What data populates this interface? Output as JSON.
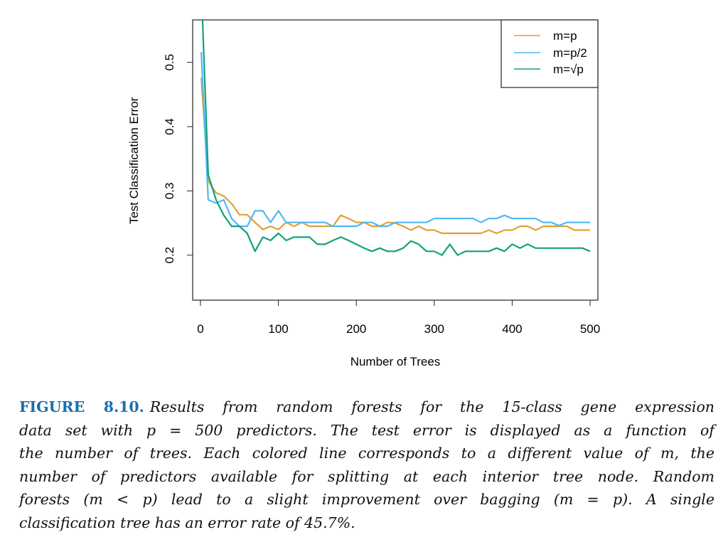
{
  "chart_data": {
    "type": "line",
    "xlabel": "Number of Trees",
    "ylabel": "Test Classification Error",
    "xlim": [
      -10,
      510
    ],
    "ylim": [
      0.13,
      0.566
    ],
    "xticks": [
      0,
      100,
      200,
      300,
      400,
      500
    ],
    "yticks": [
      0.2,
      0.3,
      0.4,
      0.5
    ],
    "grid": false,
    "legend_position": "top-right",
    "x": [
      1,
      10,
      20,
      30,
      40,
      50,
      60,
      70,
      80,
      90,
      100,
      110,
      120,
      130,
      140,
      150,
      160,
      170,
      180,
      190,
      200,
      210,
      220,
      230,
      240,
      250,
      260,
      270,
      280,
      290,
      300,
      310,
      320,
      330,
      340,
      350,
      360,
      370,
      380,
      390,
      400,
      410,
      420,
      430,
      440,
      450,
      460,
      470,
      480,
      490,
      500
    ],
    "series": [
      {
        "name": "m=p",
        "color": "#e0a034",
        "values": [
          0.476,
          0.315,
          0.297,
          0.292,
          0.28,
          0.263,
          0.263,
          0.251,
          0.24,
          0.245,
          0.24,
          0.251,
          0.245,
          0.251,
          0.245,
          0.245,
          0.245,
          0.245,
          0.262,
          0.257,
          0.251,
          0.251,
          0.245,
          0.245,
          0.251,
          0.25,
          0.245,
          0.239,
          0.245,
          0.239,
          0.239,
          0.234,
          0.234,
          0.234,
          0.234,
          0.234,
          0.234,
          0.239,
          0.234,
          0.239,
          0.239,
          0.245,
          0.245,
          0.239,
          0.245,
          0.245,
          0.245,
          0.245,
          0.239,
          0.239,
          0.239
        ]
      },
      {
        "name": "m=p/2",
        "color": "#4cb8f5",
        "values": [
          0.516,
          0.286,
          0.281,
          0.286,
          0.257,
          0.245,
          0.245,
          0.269,
          0.269,
          0.251,
          0.269,
          0.251,
          0.251,
          0.251,
          0.251,
          0.251,
          0.251,
          0.245,
          0.245,
          0.245,
          0.245,
          0.251,
          0.251,
          0.245,
          0.245,
          0.251,
          0.251,
          0.251,
          0.251,
          0.251,
          0.257,
          0.257,
          0.257,
          0.257,
          0.257,
          0.257,
          0.251,
          0.257,
          0.257,
          0.262,
          0.257,
          0.257,
          0.257,
          0.257,
          0.251,
          0.251,
          0.246,
          0.251,
          0.251,
          0.251,
          0.251
        ]
      },
      {
        "name": "m=√p",
        "color": "#14a07e",
        "values": [
          0.62,
          0.325,
          0.286,
          0.262,
          0.245,
          0.245,
          0.234,
          0.206,
          0.228,
          0.223,
          0.234,
          0.223,
          0.228,
          0.228,
          0.228,
          0.217,
          0.217,
          0.223,
          0.228,
          0.223,
          0.217,
          0.211,
          0.206,
          0.211,
          0.206,
          0.206,
          0.211,
          0.222,
          0.217,
          0.206,
          0.206,
          0.2,
          0.217,
          0.2,
          0.206,
          0.206,
          0.206,
          0.206,
          0.211,
          0.206,
          0.217,
          0.211,
          0.217,
          0.211,
          0.211,
          0.211,
          0.211,
          0.211,
          0.211,
          0.211,
          0.206
        ]
      }
    ],
    "legend": [
      {
        "label": "m=p",
        "color": "#e0a034"
      },
      {
        "label": "m=p/2",
        "color": "#4cb8f5"
      },
      {
        "label": "m=√p",
        "color": "#14a07e"
      }
    ]
  },
  "caption": {
    "label": "FIGURE 8.10.",
    "lines": [
      "Results from random forests for the 15-class gene expression",
      "data set with p = 500 predictors. The test error is displayed as a function of",
      "the number of trees. Each colored line corresponds to a different value of m, the",
      "number of predictors available for splitting at each interior tree node. Random",
      "forests (m < p) lead to a slight improvement over bagging (m = p). A single",
      "classification tree has an error rate of 45.7%."
    ]
  }
}
